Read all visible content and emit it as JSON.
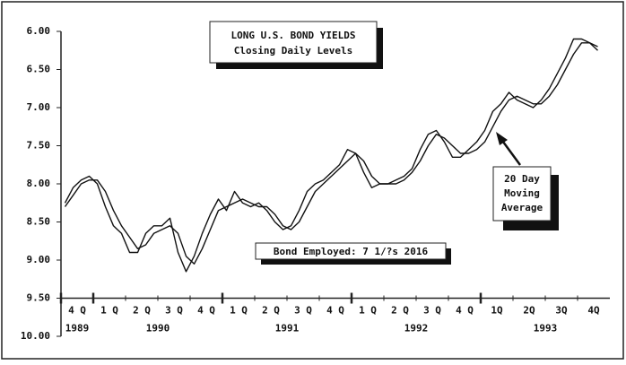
{
  "chart_data": {
    "type": "line",
    "title": "LONG U.S. BOND YIELDS",
    "subtitle": "Closing Daily Levels",
    "annotation": "Bond Employed: 7 1/?s  2016",
    "callout": [
      "20 Day",
      "Moving",
      "Average"
    ],
    "categories": [
      null,
      "4 Q",
      null,
      null,
      null,
      "1 Q",
      null,
      null,
      null,
      "2 Q",
      null,
      null,
      null,
      "3 Q",
      null,
      null,
      null,
      "4 Q",
      null,
      null,
      null,
      "1 Q",
      null,
      null,
      null,
      "2 Q",
      null,
      null,
      null,
      "3 Q",
      null,
      null,
      null,
      "4 Q",
      null,
      null,
      null,
      "1 Q",
      null,
      null,
      null,
      "2 Q",
      null,
      null,
      null,
      "3 Q",
      null,
      null,
      null,
      "4 Q",
      null,
      null,
      null,
      "1Q",
      null,
      null,
      null,
      "2Q",
      null,
      null,
      null,
      "3Q",
      null,
      null,
      null,
      "4Q",
      null,
      null
    ],
    "years": [
      "1989",
      "1990",
      "1991",
      "1992",
      "1993"
    ],
    "series": [
      {
        "color": "#111111",
        "values": [
          8.25,
          8.05,
          7.95,
          7.9,
          8.0,
          8.3,
          8.55,
          8.65,
          8.9,
          8.9,
          8.65,
          8.55,
          8.55,
          8.45,
          8.9,
          9.15,
          8.95,
          8.65,
          8.4,
          8.2,
          8.35,
          8.1,
          8.25,
          8.3,
          8.25,
          8.35,
          8.5,
          8.6,
          8.55,
          8.35,
          8.1,
          8.0,
          7.95,
          7.85,
          7.75,
          7.55,
          7.6,
          7.85,
          8.05,
          8.0,
          8.0,
          7.95,
          7.9,
          7.8,
          7.55,
          7.35,
          7.3,
          7.45,
          7.65,
          7.65,
          7.55,
          7.45,
          7.3,
          7.05,
          6.95,
          6.8,
          6.9,
          6.95,
          7.0,
          6.9,
          6.75,
          6.55,
          6.35,
          6.1,
          6.1,
          6.15,
          6.25,
          null
        ]
      },
      {
        "color": "#111111",
        "values": [
          8.3,
          8.15,
          8.0,
          7.95,
          7.95,
          8.1,
          8.35,
          8.55,
          8.7,
          8.85,
          8.8,
          8.65,
          8.6,
          8.55,
          8.65,
          8.95,
          9.05,
          8.85,
          8.6,
          8.35,
          8.3,
          8.25,
          8.2,
          8.25,
          8.3,
          8.3,
          8.4,
          8.55,
          8.6,
          8.5,
          8.3,
          8.1,
          8.0,
          7.9,
          7.8,
          7.7,
          7.6,
          7.7,
          7.9,
          8.0,
          8.0,
          8.0,
          7.95,
          7.85,
          7.7,
          7.5,
          7.35,
          7.4,
          7.5,
          7.6,
          7.6,
          7.55,
          7.45,
          7.25,
          7.05,
          6.9,
          6.85,
          6.9,
          6.95,
          6.95,
          6.85,
          6.7,
          6.5,
          6.3,
          6.15,
          6.15,
          6.2,
          null
        ]
      }
    ],
    "ylim": [
      10,
      6
    ],
    "yticks": [
      {
        "value": 6,
        "label": "6.00"
      },
      {
        "value": 6.5,
        "label": "6.50"
      },
      {
        "value": 7,
        "label": "7.00"
      },
      {
        "value": 7.5,
        "label": "7.50"
      },
      {
        "value": 8,
        "label": "8.00"
      },
      {
        "value": 8.5,
        "label": "8.50"
      },
      {
        "value": 9,
        "label": "9.00"
      },
      {
        "value": 9.5,
        "label": "9.50"
      },
      {
        "value": 10,
        "label": "10.00"
      }
    ]
  }
}
